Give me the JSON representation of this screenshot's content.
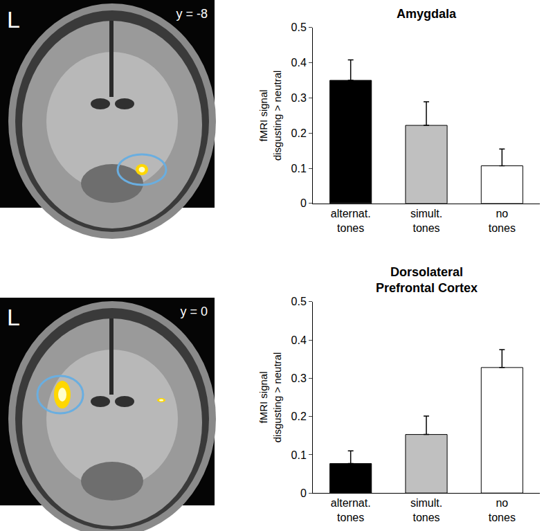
{
  "chart_data": [
    {
      "type": "bar",
      "title": "Amygdala",
      "y_label": "fMRI signal disgusting > neutral",
      "categories": [
        "alternat. tones",
        "simult. tones",
        "no tones"
      ],
      "values": [
        0.35,
        0.222,
        0.107
      ],
      "errors": [
        0.058,
        0.067,
        0.048
      ],
      "colors": [
        "#000000",
        "#c0c0c0",
        "#ffffff"
      ],
      "ylim": [
        0,
        0.5
      ],
      "yticks": [
        0,
        0.1,
        0.2,
        0.3,
        0.4,
        0.5
      ],
      "grid": false
    },
    {
      "type": "bar",
      "title": "Dorsolateral Prefrontal Cortex",
      "y_label": "fMRI signal disgusting > neutral",
      "categories": [
        "alternat. tones",
        "simult. tones",
        "no tones"
      ],
      "values": [
        0.077,
        0.153,
        0.328
      ],
      "errors": [
        0.033,
        0.048,
        0.047
      ],
      "colors": [
        "#000000",
        "#c0c0c0",
        "#ffffff"
      ],
      "ylim": [
        0,
        0.5
      ],
      "yticks": [
        0,
        0.1,
        0.2,
        0.3,
        0.4,
        0.5
      ],
      "grid": false
    }
  ],
  "images": [
    {
      "label": "L",
      "slice": "y = -8"
    },
    {
      "label": "L",
      "slice": "y = 0"
    }
  ]
}
